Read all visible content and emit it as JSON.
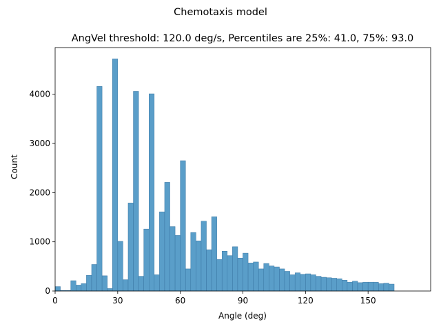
{
  "chart_data": {
    "type": "bar",
    "suptitle": "Chemotaxis model",
    "title": "AngVel threshold: 120.0 deg/s, Percentiles are 25%: 41.0, 75%: 93.0",
    "xlabel": "Angle (deg)",
    "ylabel": "Count",
    "xlim": [
      0,
      180
    ],
    "ylim": [
      0,
      4950
    ],
    "x_ticks": [
      0,
      30,
      60,
      90,
      120,
      150
    ],
    "y_ticks": [
      0,
      1000,
      2000,
      3000,
      4000
    ],
    "bin_width": 2.5,
    "bin_start": 0,
    "values": [
      90,
      10,
      10,
      210,
      120,
      150,
      320,
      540,
      4160,
      310,
      50,
      4720,
      1010,
      230,
      1790,
      4060,
      300,
      1260,
      4010,
      330,
      1610,
      2210,
      1310,
      1130,
      2650,
      450,
      1190,
      1020,
      1420,
      840,
      1510,
      640,
      810,
      720,
      900,
      670,
      770,
      570,
      590,
      450,
      560,
      510,
      490,
      450,
      400,
      330,
      370,
      340,
      350,
      330,
      300,
      280,
      270,
      260,
      250,
      220,
      180,
      200,
      170,
      180,
      180,
      180,
      150,
      160,
      140
    ],
    "bar_color": "#5a9ec9",
    "edge_color": "#3a76a3",
    "grid": false
  }
}
